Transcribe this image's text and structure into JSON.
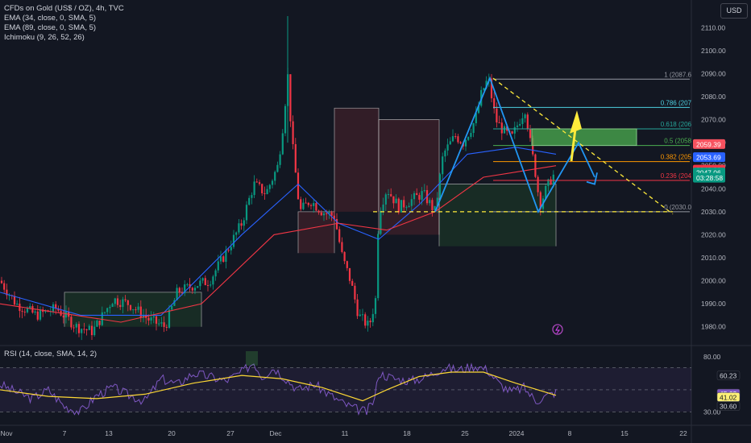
{
  "legend": {
    "symbol": "CFDs on Gold (US$ / OZ), 4h, TVC",
    "ema1": "EMA (34, close, 0, SMA, 5)",
    "ema2": "EMA (89, close, 0, SMA, 5)",
    "ichimoku": "Ichimoku (9, 26, 52, 26)"
  },
  "rsi_legend": "RSI (14, close, SMA, 14, 2)",
  "currency_button": "USD",
  "chart_data": [
    {
      "type": "candlestick",
      "y_ticks": [
        "2110.00",
        "2100.00",
        "2090.00",
        "2080.00",
        "2070.00",
        "2060.00",
        "2050.00",
        "2040.00",
        "2030.00",
        "2020.00",
        "2010.00",
        "2000.00",
        "1990.00",
        "1980.00"
      ],
      "ylim": [
        1975,
        2115
      ],
      "x_ticks": [
        "Nov",
        "7",
        "13",
        "20",
        "27",
        "Dec",
        "11",
        "18",
        "25",
        "2024",
        "8",
        "15",
        "22"
      ],
      "price_path": [
        [
          0,
          2000
        ],
        [
          20,
          1990
        ],
        [
          45,
          1985
        ],
        [
          70,
          1988
        ],
        [
          95,
          1980
        ],
        [
          115,
          1978
        ],
        [
          140,
          1992
        ],
        [
          160,
          1990
        ],
        [
          185,
          1983
        ],
        [
          205,
          1980
        ],
        [
          220,
          1995
        ],
        [
          240,
          1998
        ],
        [
          260,
          2000
        ],
        [
          280,
          2012
        ],
        [
          300,
          2025
        ],
        [
          315,
          2042
        ],
        [
          330,
          2038
        ],
        [
          345,
          2050
        ],
        [
          352,
          2070
        ],
        [
          357,
          2090
        ],
        [
          362,
          2062
        ],
        [
          372,
          2030
        ],
        [
          385,
          2035
        ],
        [
          400,
          2030
        ],
        [
          415,
          2028
        ],
        [
          425,
          2010
        ],
        [
          435,
          2000
        ],
        [
          445,
          1985
        ],
        [
          458,
          1980
        ],
        [
          466,
          1992
        ],
        [
          470,
          2030
        ],
        [
          480,
          2040
        ],
        [
          495,
          2032
        ],
        [
          510,
          2035
        ],
        [
          525,
          2038
        ],
        [
          540,
          2030
        ],
        [
          550,
          2055
        ],
        [
          565,
          2063
        ],
        [
          575,
          2060
        ],
        [
          590,
          2070
        ],
        [
          598,
          2082
        ],
        [
          606,
          2088
        ],
        [
          615,
          2070
        ],
        [
          625,
          2065
        ],
        [
          635,
          2062
        ],
        [
          645,
          2070
        ],
        [
          652,
          2075
        ],
        [
          658,
          2060
        ],
        [
          664,
          2048
        ],
        [
          670,
          2033
        ],
        [
          678,
          2040
        ],
        [
          685,
          2045
        ],
        [
          690,
          2047
        ]
      ],
      "ema34_path": [
        [
          0,
          1995
        ],
        [
          100,
          1985
        ],
        [
          200,
          1985
        ],
        [
          300,
          2020
        ],
        [
          370,
          2042
        ],
        [
          420,
          2025
        ],
        [
          470,
          2018
        ],
        [
          520,
          2033
        ],
        [
          580,
          2055
        ],
        [
          640,
          2058
        ],
        [
          690,
          2055
        ]
      ],
      "ema89_path": [
        [
          0,
          1990
        ],
        [
          150,
          1982
        ],
        [
          250,
          1990
        ],
        [
          340,
          2020
        ],
        [
          420,
          2025
        ],
        [
          480,
          2022
        ],
        [
          540,
          2030
        ],
        [
          600,
          2045
        ],
        [
          690,
          2050
        ]
      ],
      "cloud_boxes": [
        {
          "from": 370,
          "to": 415,
          "top": 2030,
          "bottom": 2012,
          "color": "#a2383d"
        },
        {
          "from": 415,
          "to": 470,
          "top": 2075,
          "bottom": 2030,
          "color": "#a2383d"
        },
        {
          "from": 470,
          "to": 545,
          "top": 2070,
          "bottom": 2020,
          "color": "#a2383d"
        },
        {
          "from": 545,
          "to": 690,
          "top": 2042,
          "bottom": 2015,
          "color": "#2e7d32"
        },
        {
          "from": 80,
          "to": 250,
          "top": 1995,
          "bottom": 1980,
          "color": "#2e7d32"
        }
      ],
      "fib_levels": [
        {
          "ratio_label": "1 (2087.6",
          "price": 2087.6,
          "color": "#9598a1"
        },
        {
          "ratio_label": "0.786 (207",
          "price": 2075.3,
          "color": "#4dd0e1"
        },
        {
          "ratio_label": "0.618 (206",
          "price": 2066.0,
          "color": "#26a69a"
        },
        {
          "ratio_label": "0.5 (2058",
          "price": 2058.8,
          "color": "#4caf50"
        },
        {
          "ratio_label": "0.382 (205",
          "price": 2051.8,
          "color": "#ff9800"
        },
        {
          "ratio_label": "0.236 (204",
          "price": 2043.6,
          "color": "#f23645"
        },
        {
          "ratio_label": "0 (2030.0",
          "price": 2030.0,
          "color": "#9598a1"
        }
      ],
      "price_badges": [
        {
          "label": "2059.39",
          "price": 2059.4,
          "bg": "#f7525f"
        },
        {
          "label": "2053.69",
          "price": 2053.7,
          "bg": "#2962ff"
        },
        {
          "label": "2048.32",
          "price": 2048.3,
          "bg": "#f23645"
        },
        {
          "label": "2047.06",
          "price": 2047.06,
          "bg": "#089981"
        },
        {
          "label": "03:28:58",
          "price": 2044.8,
          "bg": "#089981"
        }
      ],
      "zone": {
        "top": 2066,
        "bottom": 2058.8
      },
      "support_price": 2030.0
    },
    {
      "type": "line",
      "title": "RSI",
      "y_ticks": [
        "80.00",
        "30.00"
      ],
      "ylim": [
        20,
        85
      ],
      "levels": [
        70,
        50,
        30
      ],
      "rsi_path": [
        [
          0,
          55
        ],
        [
          20,
          48
        ],
        [
          40,
          42
        ],
        [
          60,
          50
        ],
        [
          80,
          35
        ],
        [
          100,
          30
        ],
        [
          120,
          45
        ],
        [
          140,
          52
        ],
        [
          160,
          45
        ],
        [
          180,
          40
        ],
        [
          200,
          60
        ],
        [
          220,
          55
        ],
        [
          240,
          65
        ],
        [
          260,
          62
        ],
        [
          280,
          58
        ],
        [
          300,
          66
        ],
        [
          315,
          75
        ],
        [
          325,
          62
        ],
        [
          340,
          70
        ],
        [
          355,
          60
        ],
        [
          370,
          50
        ],
        [
          390,
          55
        ],
        [
          410,
          45
        ],
        [
          425,
          38
        ],
        [
          440,
          33
        ],
        [
          455,
          30
        ],
        [
          465,
          42
        ],
        [
          470,
          65
        ],
        [
          490,
          60
        ],
        [
          510,
          58
        ],
        [
          530,
          62
        ],
        [
          550,
          70
        ],
        [
          570,
          68
        ],
        [
          590,
          72
        ],
        [
          605,
          68
        ],
        [
          620,
          55
        ],
        [
          635,
          48
        ],
        [
          650,
          52
        ],
        [
          665,
          40
        ],
        [
          680,
          45
        ],
        [
          690,
          48
        ]
      ],
      "sma_path": [
        [
          0,
          50
        ],
        [
          60,
          44
        ],
        [
          120,
          42
        ],
        [
          180,
          46
        ],
        [
          240,
          56
        ],
        [
          300,
          63
        ],
        [
          350,
          60
        ],
        [
          400,
          52
        ],
        [
          450,
          40
        ],
        [
          480,
          50
        ],
        [
          520,
          62
        ],
        [
          560,
          66
        ],
        [
          600,
          66
        ],
        [
          640,
          56
        ],
        [
          690,
          45
        ]
      ],
      "badges": [
        {
          "label": "60.23",
          "value": 63.0,
          "bg": "#131722",
          "fg": "#d1d4dc"
        },
        {
          "label": "45.03",
          "value": 46.6,
          "bg": "#7e57c2",
          "fg": "#ffffff"
        },
        {
          "label": "41.02",
          "value": 43.4,
          "bg": "#fff176",
          "fg": "#131722"
        },
        {
          "label": "30.60",
          "value": 35.2,
          "bg": "#131722",
          "fg": "#d1d4dc"
        }
      ]
    }
  ],
  "colors": {
    "up": "#089981",
    "down": "#f23645",
    "ema34": "#2962ff",
    "ema89": "#f23645",
    "zone": "#4caf50",
    "arrow_up": "#ffeb3b",
    "pattern": "#2196f3",
    "rsi": "#7e57c2",
    "rsi_sma": "#fdd835"
  }
}
